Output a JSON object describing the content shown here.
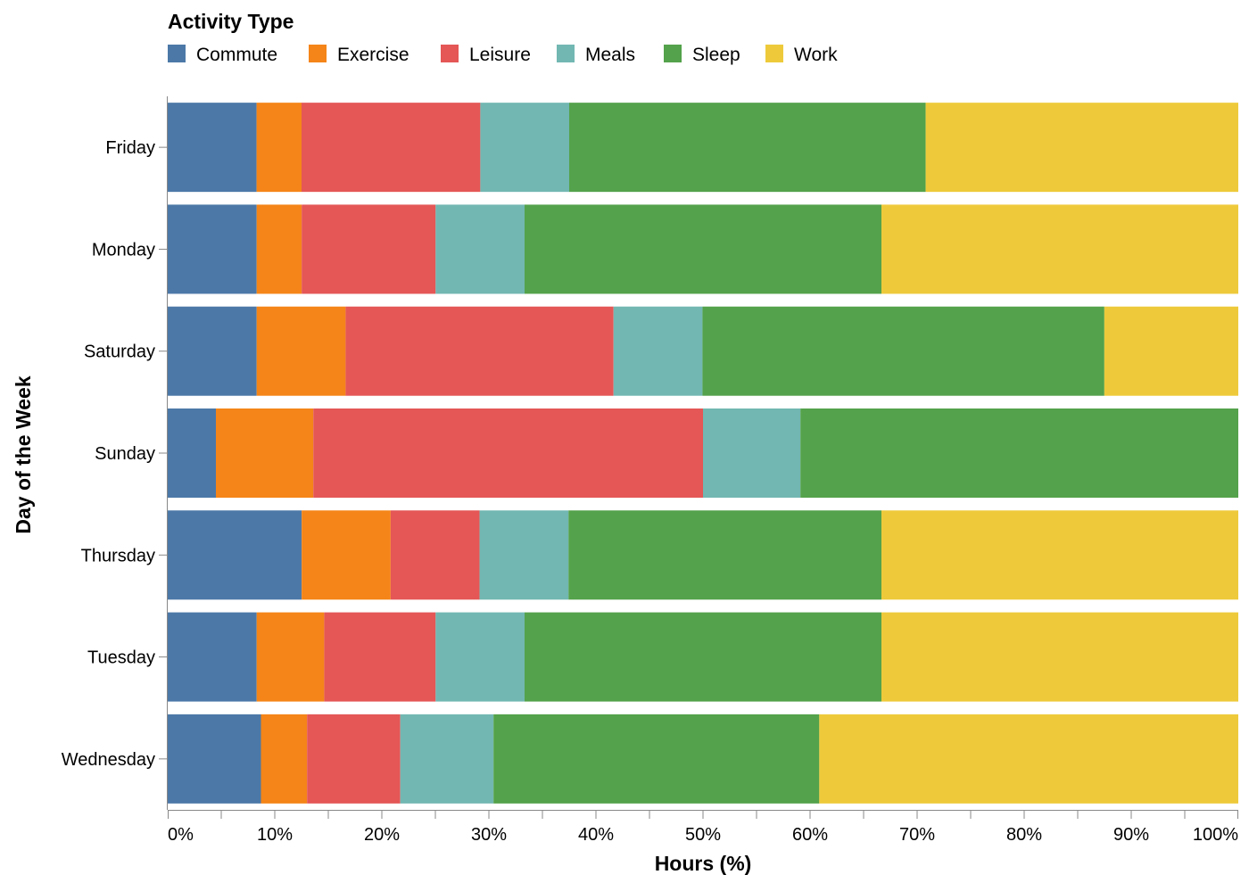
{
  "chart_data": {
    "type": "bar",
    "orientation": "horizontal",
    "stacked": "normalized",
    "title": "",
    "xlabel": "Hours (%)",
    "ylabel": "Day of the Week",
    "xlim": [
      0,
      100
    ],
    "x_ticks": [
      "0%",
      "10%",
      "20%",
      "30%",
      "40%",
      "50%",
      "60%",
      "70%",
      "80%",
      "90%",
      "100%"
    ],
    "categories": [
      "Friday",
      "Monday",
      "Saturday",
      "Sunday",
      "Thursday",
      "Tuesday",
      "Wednesday"
    ],
    "legend": {
      "title": "Activity Type",
      "position": "top-left"
    },
    "grid": false,
    "series": [
      {
        "name": "Commute",
        "color": "#4c78a8",
        "values": [
          8.3,
          8.3,
          8.3,
          4.5,
          12.5,
          8.3,
          8.7
        ]
      },
      {
        "name": "Exercise",
        "color": "#f58518",
        "values": [
          4.2,
          4.2,
          8.3,
          9.1,
          8.3,
          6.3,
          4.3
        ]
      },
      {
        "name": "Leisure",
        "color": "#e45756",
        "values": [
          16.7,
          12.5,
          25.0,
          36.4,
          8.3,
          10.4,
          8.7
        ]
      },
      {
        "name": "Meals",
        "color": "#72b7b2",
        "values": [
          8.3,
          8.3,
          8.3,
          9.1,
          8.3,
          8.3,
          8.7
        ]
      },
      {
        "name": "Sleep",
        "color": "#54a24b",
        "values": [
          33.3,
          33.3,
          37.5,
          40.9,
          29.2,
          33.3,
          30.4
        ]
      },
      {
        "name": "Work",
        "color": "#eeca3b",
        "values": [
          29.2,
          33.3,
          12.5,
          0,
          33.3,
          33.3,
          39.1
        ]
      }
    ]
  }
}
